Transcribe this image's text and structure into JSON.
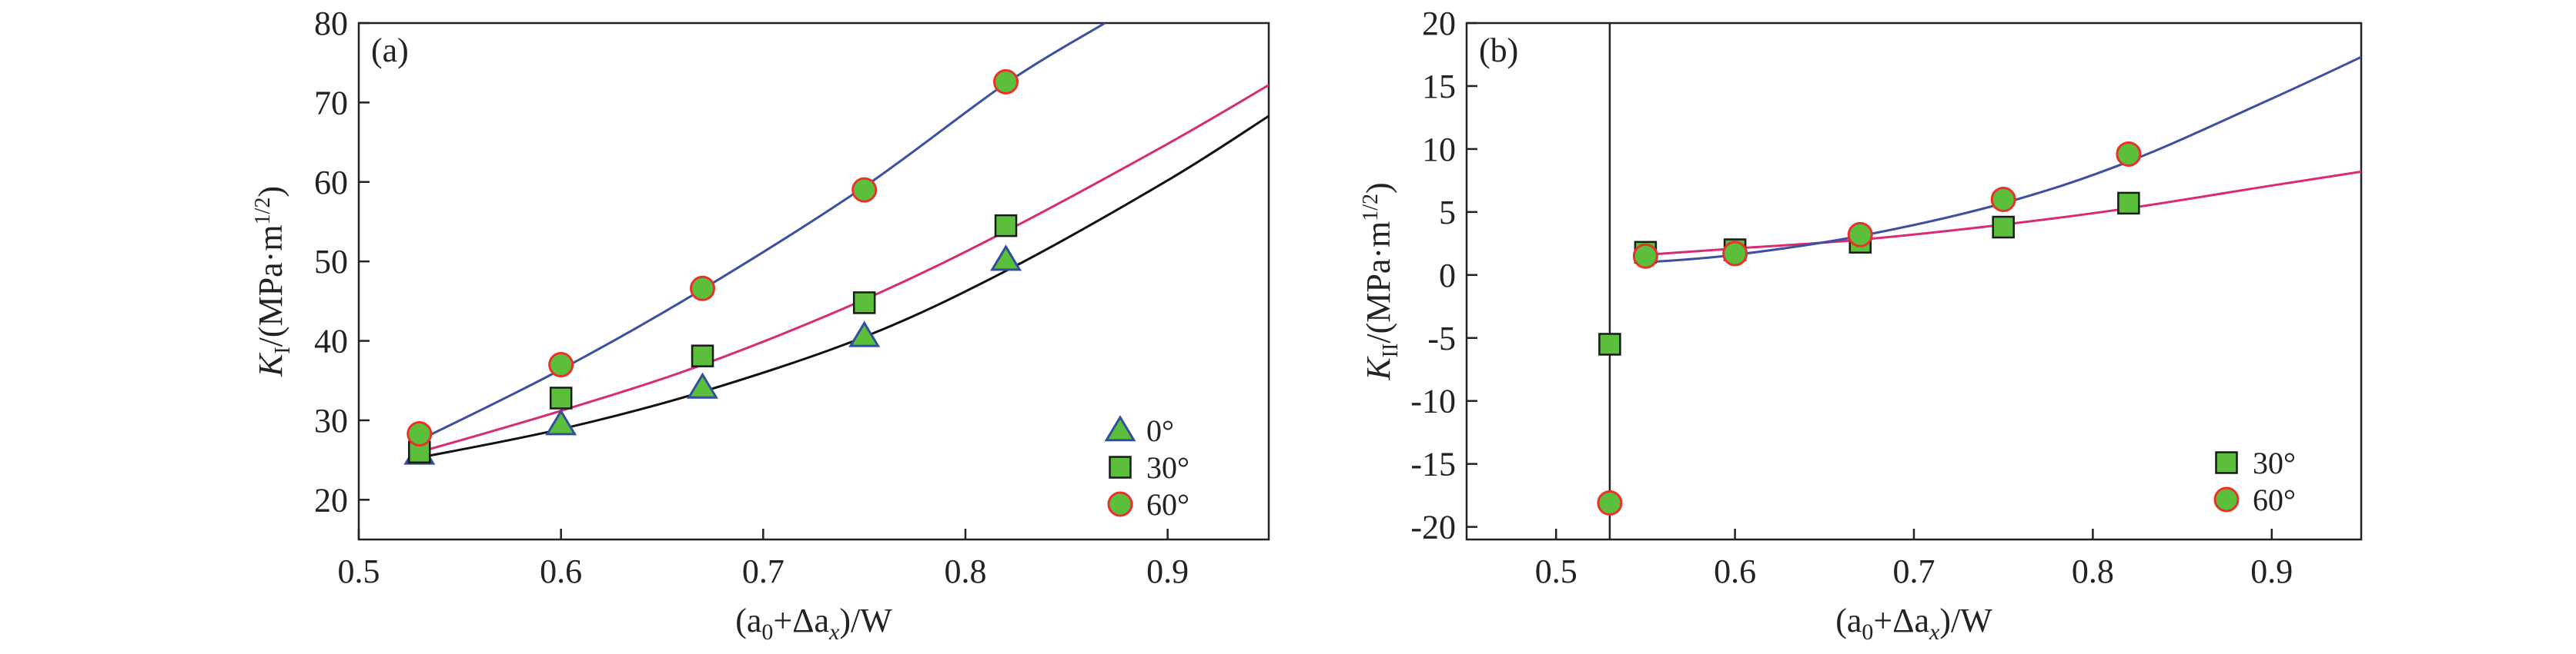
{
  "colors": {
    "axis": "#222222",
    "marker_fill": "#5cbf3c",
    "triangle_edge": "#2f4f9f",
    "square_edge": "#1a1a1a",
    "circle_edge": "#e8332b",
    "fit_0": "#111111",
    "fit_30": "#d92b73",
    "fit_60": "#3d4fa0"
  },
  "chart_data": [
    {
      "panel": "(a)",
      "type": "scatter",
      "xlabel": {
        "pre": "(a",
        "sub1": "0",
        "mid": "+Δa",
        "sub2": "x",
        "post": ")/W"
      },
      "ylabel": {
        "main": "K",
        "sub": "I",
        "unit": "/(MPa·m",
        "sup": "1/2",
        "close": ")"
      },
      "xlim": [
        0.5,
        0.95
      ],
      "ylim": [
        15,
        80
      ],
      "xticks": [
        "0.5",
        "0.6",
        "0.7",
        "0.8",
        "0.9"
      ],
      "xtick_values": [
        0.5,
        0.6,
        0.7,
        0.8,
        0.9
      ],
      "yticks": [
        "20",
        "30",
        "40",
        "50",
        "60",
        "70",
        "80"
      ],
      "ytick_values": [
        20,
        30,
        40,
        50,
        60,
        70,
        80
      ],
      "legend_position": "bottom-right",
      "series": [
        {
          "name": "0°",
          "marker": "triangle",
          "x": [
            0.53,
            0.6,
            0.67,
            0.75,
            0.82
          ],
          "y": [
            25.8,
            29.5,
            34.1,
            40.6,
            50.2
          ],
          "fit_x": [
            0.53,
            0.6,
            0.67,
            0.75,
            0.82,
            0.9,
            0.95
          ],
          "fit_y": [
            25.3,
            28.9,
            33.6,
            40.5,
            48.8,
            60.2,
            68.3
          ]
        },
        {
          "name": "30°",
          "marker": "square",
          "x": [
            0.53,
            0.6,
            0.67,
            0.75,
            0.82
          ],
          "y": [
            26.0,
            32.8,
            38.1,
            44.8,
            54.5
          ],
          "fit_x": [
            0.53,
            0.6,
            0.67,
            0.75,
            0.82,
            0.9,
            0.95
          ],
          "fit_y": [
            26.0,
            31.2,
            37.0,
            45.2,
            53.8,
            64.8,
            72.2
          ]
        },
        {
          "name": "60°",
          "marker": "circle",
          "x": [
            0.53,
            0.6,
            0.67,
            0.75,
            0.82
          ],
          "y": [
            28.3,
            37.0,
            46.6,
            59.0,
            72.6
          ],
          "fit_x": [
            0.53,
            0.6,
            0.67,
            0.75,
            0.82,
            0.869
          ],
          "fit_y": [
            27.5,
            36.4,
            46.5,
            59.4,
            72.4,
            80.0
          ]
        }
      ]
    },
    {
      "panel": "(b)",
      "type": "scatter",
      "xlabel": {
        "pre": "(a",
        "sub1": "0",
        "mid": "+Δa",
        "sub2": "x",
        "post": ")/W"
      },
      "ylabel": {
        "main": "K",
        "sub": "II",
        "unit": "/(MPa·m",
        "sup": "1/2",
        "close": ")"
      },
      "xlim": [
        0.45,
        0.95
      ],
      "ylim": [
        -21,
        20
      ],
      "xticks": [
        "0.5",
        "0.6",
        "0.7",
        "0.8",
        "0.9"
      ],
      "xtick_values": [
        0.5,
        0.6,
        0.7,
        0.8,
        0.9
      ],
      "yticks": [
        "-20",
        "-15",
        "-10",
        "-5",
        "0",
        "5",
        "10",
        "15",
        "20"
      ],
      "ytick_values": [
        -20,
        -15,
        -10,
        -5,
        0,
        5,
        10,
        15,
        20
      ],
      "vertical_line_x": 0.53,
      "legend_position": "bottom-right",
      "series": [
        {
          "name": "30°",
          "marker": "square",
          "x": [
            0.53,
            0.55,
            0.6,
            0.67,
            0.75,
            0.82
          ],
          "y": [
            -5.5,
            1.8,
            2.0,
            2.6,
            3.8,
            5.7
          ],
          "fit_x": [
            0.55,
            0.6,
            0.67,
            0.75,
            0.82,
            0.9,
            0.95
          ],
          "fit_y": [
            1.6,
            2.1,
            2.8,
            4.0,
            5.3,
            7.1,
            8.2
          ]
        },
        {
          "name": "60°",
          "marker": "circle",
          "x": [
            0.53,
            0.55,
            0.6,
            0.67,
            0.75,
            0.82
          ],
          "y": [
            -18.1,
            1.5,
            1.7,
            3.2,
            6.0,
            9.6
          ],
          "fit_x": [
            0.55,
            0.6,
            0.67,
            0.75,
            0.82,
            0.9,
            0.95
          ],
          "fit_y": [
            1.0,
            1.6,
            3.1,
            5.7,
            9.0,
            14.0,
            17.3
          ]
        }
      ]
    }
  ]
}
